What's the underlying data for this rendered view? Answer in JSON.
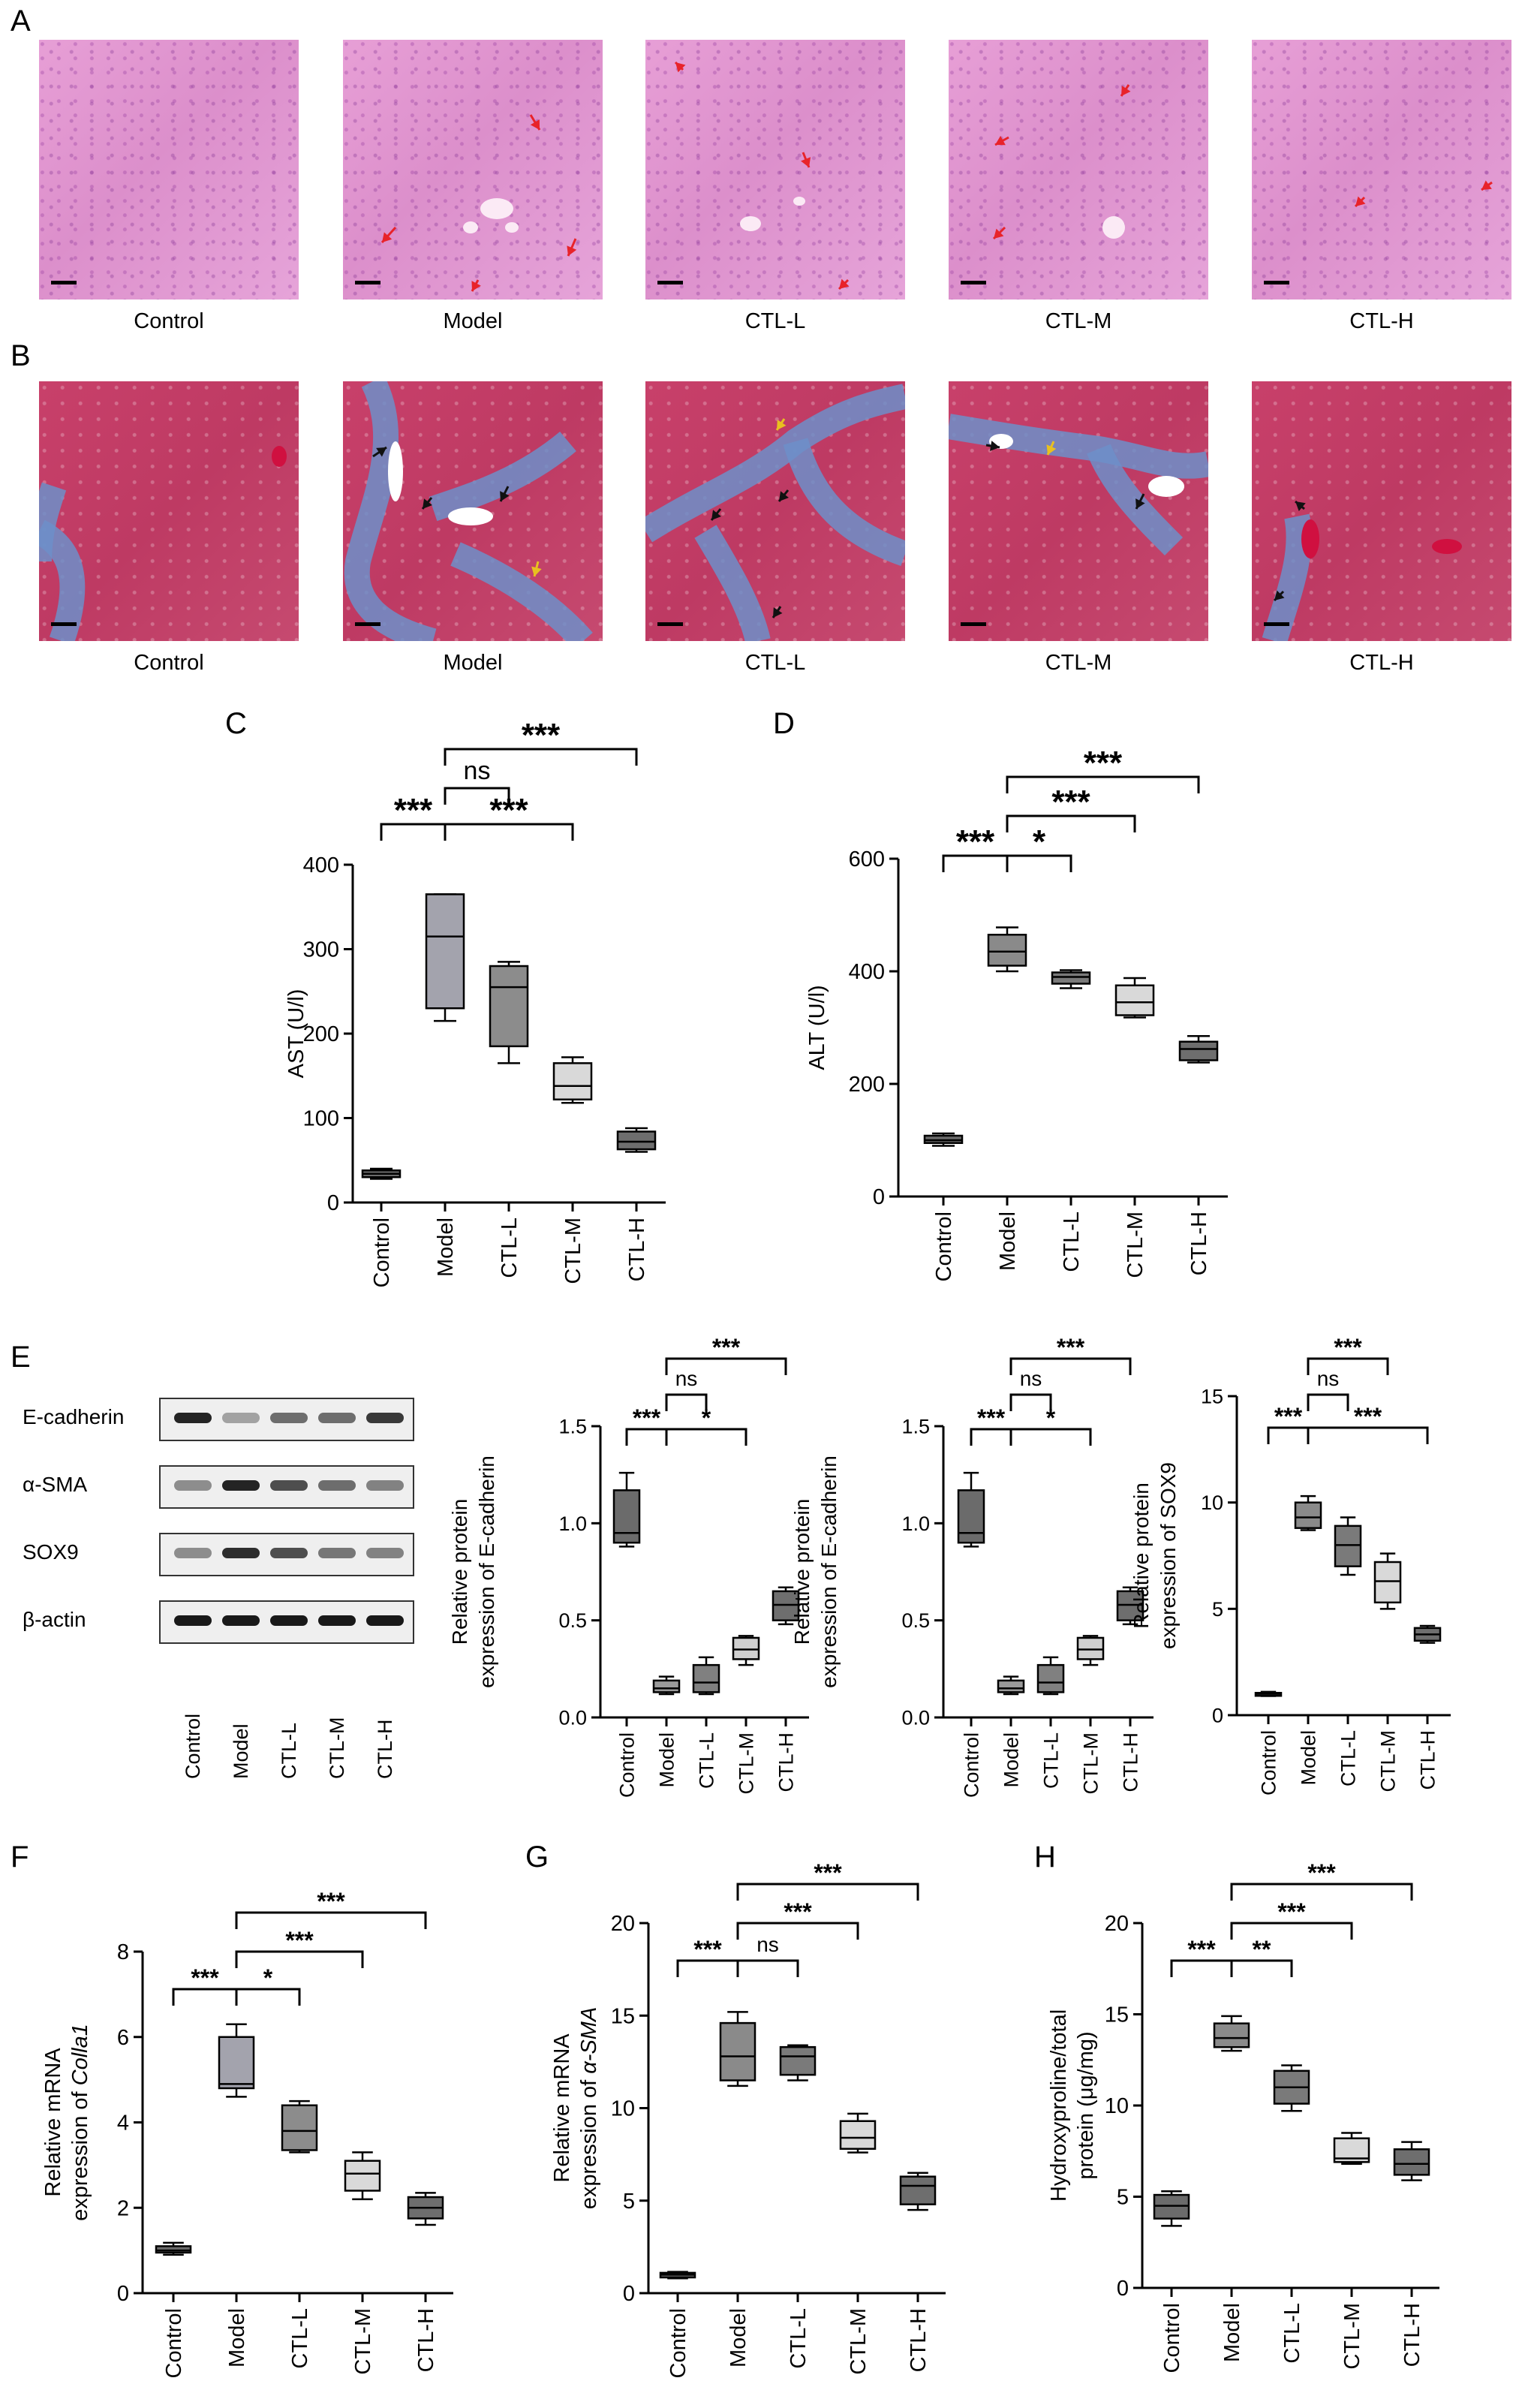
{
  "panel_letters": {
    "A": "A",
    "B": "B",
    "C": "C",
    "D": "D",
    "E": "E",
    "F": "F",
    "G": "G",
    "H": "H"
  },
  "micrographs_A": {
    "labels": [
      "Control",
      "Model",
      "CTL-L",
      "CTL-M",
      "CTL-H"
    ],
    "stain": "H&E",
    "arrow_color": "#e8232a"
  },
  "micrographs_B": {
    "labels": [
      "Control",
      "Model",
      "CTL-L",
      "CTL-M",
      "CTL-H"
    ],
    "stain": "Masson",
    "arrow_color": "#111111",
    "highlight_arrow_color": "#e8c020"
  },
  "blot": {
    "rows": [
      "E-cadherin",
      "α-SMA",
      "SOX9",
      "β-actin"
    ],
    "lanes": [
      "Control",
      "Model",
      "CTL-L",
      "CTL-M",
      "CTL-H"
    ],
    "intensity": [
      [
        0.95,
        0.35,
        0.6,
        0.6,
        0.85
      ],
      [
        0.45,
        0.95,
        0.75,
        0.6,
        0.5
      ],
      [
        0.45,
        0.9,
        0.75,
        0.55,
        0.5
      ],
      [
        1.0,
        1.0,
        1.0,
        1.0,
        1.0
      ]
    ]
  },
  "chart_data": [
    {
      "id": "C",
      "type": "box",
      "categories": [
        "Control",
        "Model",
        "CTL-L",
        "CTL-M",
        "CTL-H"
      ],
      "ylabel": "AST (U/l)",
      "ylim": [
        0,
        400
      ],
      "yticks": [
        0,
        100,
        200,
        300,
        400
      ],
      "boxes": [
        {
          "min": 28,
          "q1": 30,
          "median": 34,
          "q3": 38,
          "max": 40
        },
        {
          "min": 215,
          "q1": 230,
          "median": 315,
          "q3": 365,
          "max": 365
        },
        {
          "min": 165,
          "q1": 185,
          "median": 255,
          "q3": 280,
          "max": 285
        },
        {
          "min": 118,
          "q1": 122,
          "median": 138,
          "q3": 165,
          "max": 172
        },
        {
          "min": 60,
          "q1": 63,
          "median": 72,
          "q3": 84,
          "max": 88
        }
      ],
      "fills": [
        "#6b6b6b",
        "#a3a3ad",
        "#8c8c8c",
        "#d9d9d9",
        "#6e6e6e"
      ],
      "sig": [
        {
          "from": 0,
          "to": 1,
          "label": "***",
          "level": 1
        },
        {
          "from": 1,
          "to": 2,
          "label": "ns",
          "level": 2
        },
        {
          "from": 1,
          "to": 3,
          "label": "***",
          "level": 1
        },
        {
          "from": 1,
          "to": 4,
          "label": "***",
          "level": 3
        }
      ]
    },
    {
      "id": "D",
      "type": "box",
      "categories": [
        "Control",
        "Model",
        "CTL-L",
        "CTL-M",
        "CTL-H"
      ],
      "ylabel": "ALT (U/l)",
      "ylim": [
        0,
        600
      ],
      "yticks": [
        0,
        200,
        400,
        600
      ],
      "boxes": [
        {
          "min": 90,
          "q1": 95,
          "median": 100,
          "q3": 108,
          "max": 112
        },
        {
          "min": 400,
          "q1": 410,
          "median": 435,
          "q3": 465,
          "max": 478
        },
        {
          "min": 370,
          "q1": 378,
          "median": 390,
          "q3": 398,
          "max": 402
        },
        {
          "min": 318,
          "q1": 322,
          "median": 345,
          "q3": 375,
          "max": 388
        },
        {
          "min": 238,
          "q1": 242,
          "median": 262,
          "q3": 275,
          "max": 285
        }
      ],
      "fills": [
        "#6b6b6b",
        "#8a8a8a",
        "#7a7a7a",
        "#d9d9d9",
        "#6e6e6e"
      ],
      "sig": [
        {
          "from": 0,
          "to": 1,
          "label": "***",
          "level": 1
        },
        {
          "from": 1,
          "to": 2,
          "label": "*",
          "level": 1
        },
        {
          "from": 1,
          "to": 3,
          "label": "***",
          "level": 2
        },
        {
          "from": 1,
          "to": 4,
          "label": "***",
          "level": 3
        }
      ]
    },
    {
      "id": "E1",
      "type": "box",
      "categories": [
        "Control",
        "Model",
        "CTL-L",
        "CTL-M",
        "CTL-H"
      ],
      "ylabel": "Relative protein expression of E-cadherin",
      "ylim": [
        0,
        1.5
      ],
      "yticks": [
        0.0,
        0.5,
        1.0,
        1.5
      ],
      "tick_format": "0.0",
      "boxes": [
        {
          "min": 0.88,
          "q1": 0.9,
          "median": 0.95,
          "q3": 1.17,
          "max": 1.26
        },
        {
          "min": 0.12,
          "q1": 0.13,
          "median": 0.15,
          "q3": 0.19,
          "max": 0.21
        },
        {
          "min": 0.12,
          "q1": 0.13,
          "median": 0.18,
          "q3": 0.27,
          "max": 0.31
        },
        {
          "min": 0.27,
          "q1": 0.3,
          "median": 0.35,
          "q3": 0.41,
          "max": 0.42
        },
        {
          "min": 0.48,
          "q1": 0.5,
          "median": 0.58,
          "q3": 0.65,
          "max": 0.67
        }
      ],
      "fills": [
        "#6b6b6b",
        "#9a9a9a",
        "#808080",
        "#d0d0d0",
        "#6e6e6e"
      ],
      "sig": [
        {
          "from": 0,
          "to": 1,
          "label": "***",
          "level": 1
        },
        {
          "from": 1,
          "to": 2,
          "label": "ns",
          "level": 2
        },
        {
          "from": 1,
          "to": 3,
          "label": "*",
          "level": 1
        },
        {
          "from": 1,
          "to": 4,
          "label": "***",
          "level": 3
        }
      ]
    },
    {
      "id": "E2",
      "type": "box",
      "categories": [
        "Control",
        "Model",
        "CTL-L",
        "CTL-M",
        "CTL-H"
      ],
      "ylabel": "Relative protein expression of E-cadherin",
      "ylim": [
        0,
        1.5
      ],
      "yticks": [
        0.0,
        0.5,
        1.0,
        1.5
      ],
      "tick_format": "0.0",
      "boxes": [
        {
          "min": 0.88,
          "q1": 0.9,
          "median": 0.95,
          "q3": 1.17,
          "max": 1.26
        },
        {
          "min": 0.12,
          "q1": 0.13,
          "median": 0.15,
          "q3": 0.19,
          "max": 0.21
        },
        {
          "min": 0.12,
          "q1": 0.13,
          "median": 0.18,
          "q3": 0.27,
          "max": 0.31
        },
        {
          "min": 0.27,
          "q1": 0.3,
          "median": 0.35,
          "q3": 0.41,
          "max": 0.42
        },
        {
          "min": 0.48,
          "q1": 0.5,
          "median": 0.58,
          "q3": 0.65,
          "max": 0.67
        }
      ],
      "fills": [
        "#6b6b6b",
        "#9a9a9a",
        "#808080",
        "#d0d0d0",
        "#6e6e6e"
      ],
      "sig": [
        {
          "from": 0,
          "to": 1,
          "label": "***",
          "level": 1
        },
        {
          "from": 1,
          "to": 2,
          "label": "ns",
          "level": 2
        },
        {
          "from": 1,
          "to": 3,
          "label": "*",
          "level": 1
        },
        {
          "from": 1,
          "to": 4,
          "label": "***",
          "level": 3
        }
      ]
    },
    {
      "id": "E3",
      "type": "box",
      "categories": [
        "Control",
        "Model",
        "CTL-L",
        "CTL-M",
        "CTL-H"
      ],
      "ylabel": "Relative protein expression of SOX9",
      "ylim": [
        0,
        15
      ],
      "yticks": [
        0,
        5,
        10,
        15
      ],
      "boxes": [
        {
          "min": 0.9,
          "q1": 0.95,
          "median": 1.0,
          "q3": 1.05,
          "max": 1.1
        },
        {
          "min": 8.7,
          "q1": 8.8,
          "median": 9.3,
          "q3": 10.0,
          "max": 10.3
        },
        {
          "min": 6.6,
          "q1": 7.0,
          "median": 8.0,
          "q3": 8.9,
          "max": 9.3
        },
        {
          "min": 5.0,
          "q1": 5.3,
          "median": 6.3,
          "q3": 7.2,
          "max": 7.6
        },
        {
          "min": 3.4,
          "q1": 3.5,
          "median": 3.8,
          "q3": 4.1,
          "max": 4.2
        }
      ],
      "fills": [
        "#6b6b6b",
        "#8a8a8a",
        "#7a7a7a",
        "#d9d9d9",
        "#6e6e6e"
      ],
      "sig": [
        {
          "from": 0,
          "to": 1,
          "label": "***",
          "level": 1
        },
        {
          "from": 1,
          "to": 2,
          "label": "ns",
          "level": 2
        },
        {
          "from": 1,
          "to": 4,
          "label": "***",
          "level": 1
        },
        {
          "from": 1,
          "to": 3,
          "label": "***",
          "level": 3
        }
      ]
    },
    {
      "id": "F",
      "type": "box",
      "categories": [
        "Control",
        "Model",
        "CTL-L",
        "CTL-M",
        "CTL-H"
      ],
      "ylabel_line1": "Relative mRNA",
      "ylabel_line2_prefix": "expression of ",
      "ylabel_line2_gene": "Colla1",
      "ylim": [
        0,
        8
      ],
      "yticks": [
        0,
        2,
        4,
        6,
        8
      ],
      "boxes": [
        {
          "min": 0.9,
          "q1": 0.95,
          "median": 1.0,
          "q3": 1.1,
          "max": 1.18
        },
        {
          "min": 4.6,
          "q1": 4.8,
          "median": 4.9,
          "q3": 6.0,
          "max": 6.3
        },
        {
          "min": 3.3,
          "q1": 3.35,
          "median": 3.8,
          "q3": 4.4,
          "max": 4.5
        },
        {
          "min": 2.2,
          "q1": 2.4,
          "median": 2.8,
          "q3": 3.1,
          "max": 3.3
        },
        {
          "min": 1.6,
          "q1": 1.75,
          "median": 2.0,
          "q3": 2.25,
          "max": 2.35
        }
      ],
      "fills": [
        "#6b6b6b",
        "#a3a3ad",
        "#8c8c8c",
        "#d9d9d9",
        "#6e6e6e"
      ],
      "sig": [
        {
          "from": 0,
          "to": 1,
          "label": "***",
          "level": 1
        },
        {
          "from": 1,
          "to": 2,
          "label": "*",
          "level": 1
        },
        {
          "from": 1,
          "to": 3,
          "label": "***",
          "level": 2
        },
        {
          "from": 1,
          "to": 4,
          "label": "***",
          "level": 3
        }
      ]
    },
    {
      "id": "G",
      "type": "box",
      "categories": [
        "Control",
        "Model",
        "CTL-L",
        "CTL-M",
        "CTL-H"
      ],
      "ylabel_line1": "Relative mRNA",
      "ylabel_line2_prefix": "expression of ",
      "ylabel_line2_gene": "α-SMA",
      "ylim": [
        0,
        20
      ],
      "yticks": [
        0,
        5,
        10,
        15,
        20
      ],
      "boxes": [
        {
          "min": 0.8,
          "q1": 0.85,
          "median": 1.0,
          "q3": 1.1,
          "max": 1.15
        },
        {
          "min": 11.2,
          "q1": 11.5,
          "median": 12.8,
          "q3": 14.6,
          "max": 15.2
        },
        {
          "min": 11.5,
          "q1": 11.8,
          "median": 12.8,
          "q3": 13.3,
          "max": 13.4
        },
        {
          "min": 7.6,
          "q1": 7.8,
          "median": 8.4,
          "q3": 9.3,
          "max": 9.7
        },
        {
          "min": 4.5,
          "q1": 4.8,
          "median": 5.8,
          "q3": 6.3,
          "max": 6.5
        }
      ],
      "fills": [
        "#6b6b6b",
        "#8a8a8a",
        "#7a7a7a",
        "#d9d9d9",
        "#6e6e6e"
      ],
      "sig": [
        {
          "from": 0,
          "to": 1,
          "label": "***",
          "level": 1
        },
        {
          "from": 1,
          "to": 2,
          "label": "ns",
          "level": 1
        },
        {
          "from": 1,
          "to": 3,
          "label": "***",
          "level": 2
        },
        {
          "from": 1,
          "to": 4,
          "label": "***",
          "level": 3
        }
      ]
    },
    {
      "id": "H",
      "type": "box",
      "categories": [
        "Control",
        "Model",
        "CTL-L",
        "CTL-M",
        "CTL-H"
      ],
      "ylabel_line1": "Hydroxyproline/total",
      "ylabel_line2_prefix": "protein (μg/mg)",
      "ylabel_line2_gene": "",
      "ylim": [
        0,
        20
      ],
      "yticks": [
        0,
        5,
        10,
        15,
        20
      ],
      "boxes": [
        {
          "min": 3.4,
          "q1": 3.8,
          "median": 4.5,
          "q3": 5.1,
          "max": 5.3
        },
        {
          "min": 13.0,
          "q1": 13.2,
          "median": 13.7,
          "q3": 14.5,
          "max": 14.9
        },
        {
          "min": 9.7,
          "q1": 10.1,
          "median": 11.0,
          "q3": 11.9,
          "max": 12.2
        },
        {
          "min": 6.8,
          "q1": 6.9,
          "median": 7.1,
          "q3": 8.2,
          "max": 8.5
        },
        {
          "min": 5.9,
          "q1": 6.2,
          "median": 6.8,
          "q3": 7.6,
          "max": 8.0
        }
      ],
      "fills": [
        "#6b6b6b",
        "#8a8a8a",
        "#7a7a7a",
        "#d9d9d9",
        "#6e6e6e"
      ],
      "sig": [
        {
          "from": 0,
          "to": 1,
          "label": "***",
          "level": 1
        },
        {
          "from": 1,
          "to": 2,
          "label": "**",
          "level": 1
        },
        {
          "from": 1,
          "to": 3,
          "label": "***",
          "level": 2
        },
        {
          "from": 1,
          "to": 4,
          "label": "***",
          "level": 3
        }
      ]
    }
  ]
}
